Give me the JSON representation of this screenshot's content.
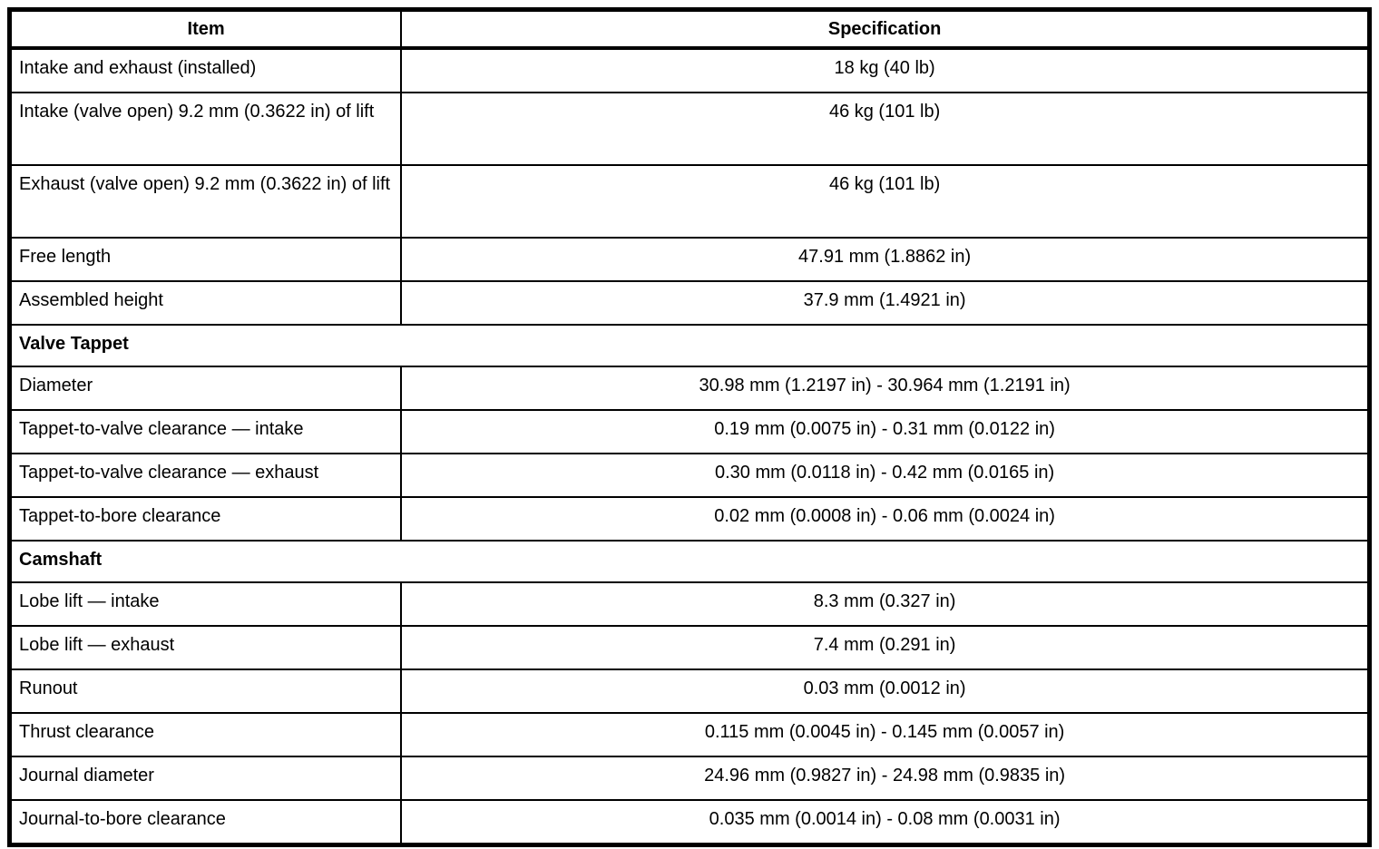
{
  "page": {
    "background_color": "#ffffff",
    "text_color": "#000000",
    "border_color": "#000000"
  },
  "table": {
    "headers": [
      "Item",
      "Specification"
    ],
    "rows": [
      {
        "type": "data",
        "item": "Intake and exhaust (installed)",
        "spec": "18 kg (40 lb)",
        "tall": false
      },
      {
        "type": "data",
        "item": "Intake (valve open) 9.2 mm (0.3622 in) of lift",
        "spec": "46 kg (101 lb)",
        "tall": true
      },
      {
        "type": "data",
        "item": "Exhaust (valve open) 9.2 mm (0.3622 in) of lift",
        "spec": "46 kg (101 lb)",
        "tall": true
      },
      {
        "type": "data",
        "item": "Free length",
        "spec": "47.91 mm (1.8862 in)",
        "tall": false
      },
      {
        "type": "data",
        "item": "Assembled height",
        "spec": "37.9 mm (1.4921 in)",
        "tall": false
      },
      {
        "type": "section",
        "label": "Valve Tappet"
      },
      {
        "type": "data",
        "item": "Diameter",
        "spec": "30.98 mm (1.2197 in) - 30.964 mm (1.2191 in)",
        "tall": false
      },
      {
        "type": "data",
        "item": "Tappet-to-valve clearance — intake",
        "spec": "0.19 mm (0.0075 in) - 0.31 mm (0.0122 in)",
        "tall": false
      },
      {
        "type": "data",
        "item": "Tappet-to-valve clearance — exhaust",
        "spec": "0.30 mm (0.0118 in) - 0.42 mm (0.0165 in)",
        "tall": false
      },
      {
        "type": "data",
        "item": "Tappet-to-bore clearance",
        "spec": "0.02 mm (0.0008 in) - 0.06 mm (0.0024 in)",
        "tall": false
      },
      {
        "type": "section",
        "label": "Camshaft"
      },
      {
        "type": "data",
        "item": "Lobe lift — intake",
        "spec": "8.3 mm (0.327 in)",
        "tall": false
      },
      {
        "type": "data",
        "item": "Lobe lift — exhaust",
        "spec": "7.4 mm (0.291 in)",
        "tall": false
      },
      {
        "type": "data",
        "item": "Runout",
        "spec": "0.03 mm (0.0012 in)",
        "tall": false
      },
      {
        "type": "data",
        "item": "Thrust clearance",
        "spec": "0.115 mm (0.0045 in) - 0.145 mm (0.0057 in)",
        "tall": false
      },
      {
        "type": "data",
        "item": "Journal diameter",
        "spec": "24.96 mm (0.9827 in) - 24.98 mm (0.9835 in)",
        "tall": false
      },
      {
        "type": "data",
        "item": "Journal-to-bore clearance",
        "spec": "0.035 mm (0.0014 in) - 0.08 mm (0.0031 in)",
        "tall": false
      }
    ]
  }
}
